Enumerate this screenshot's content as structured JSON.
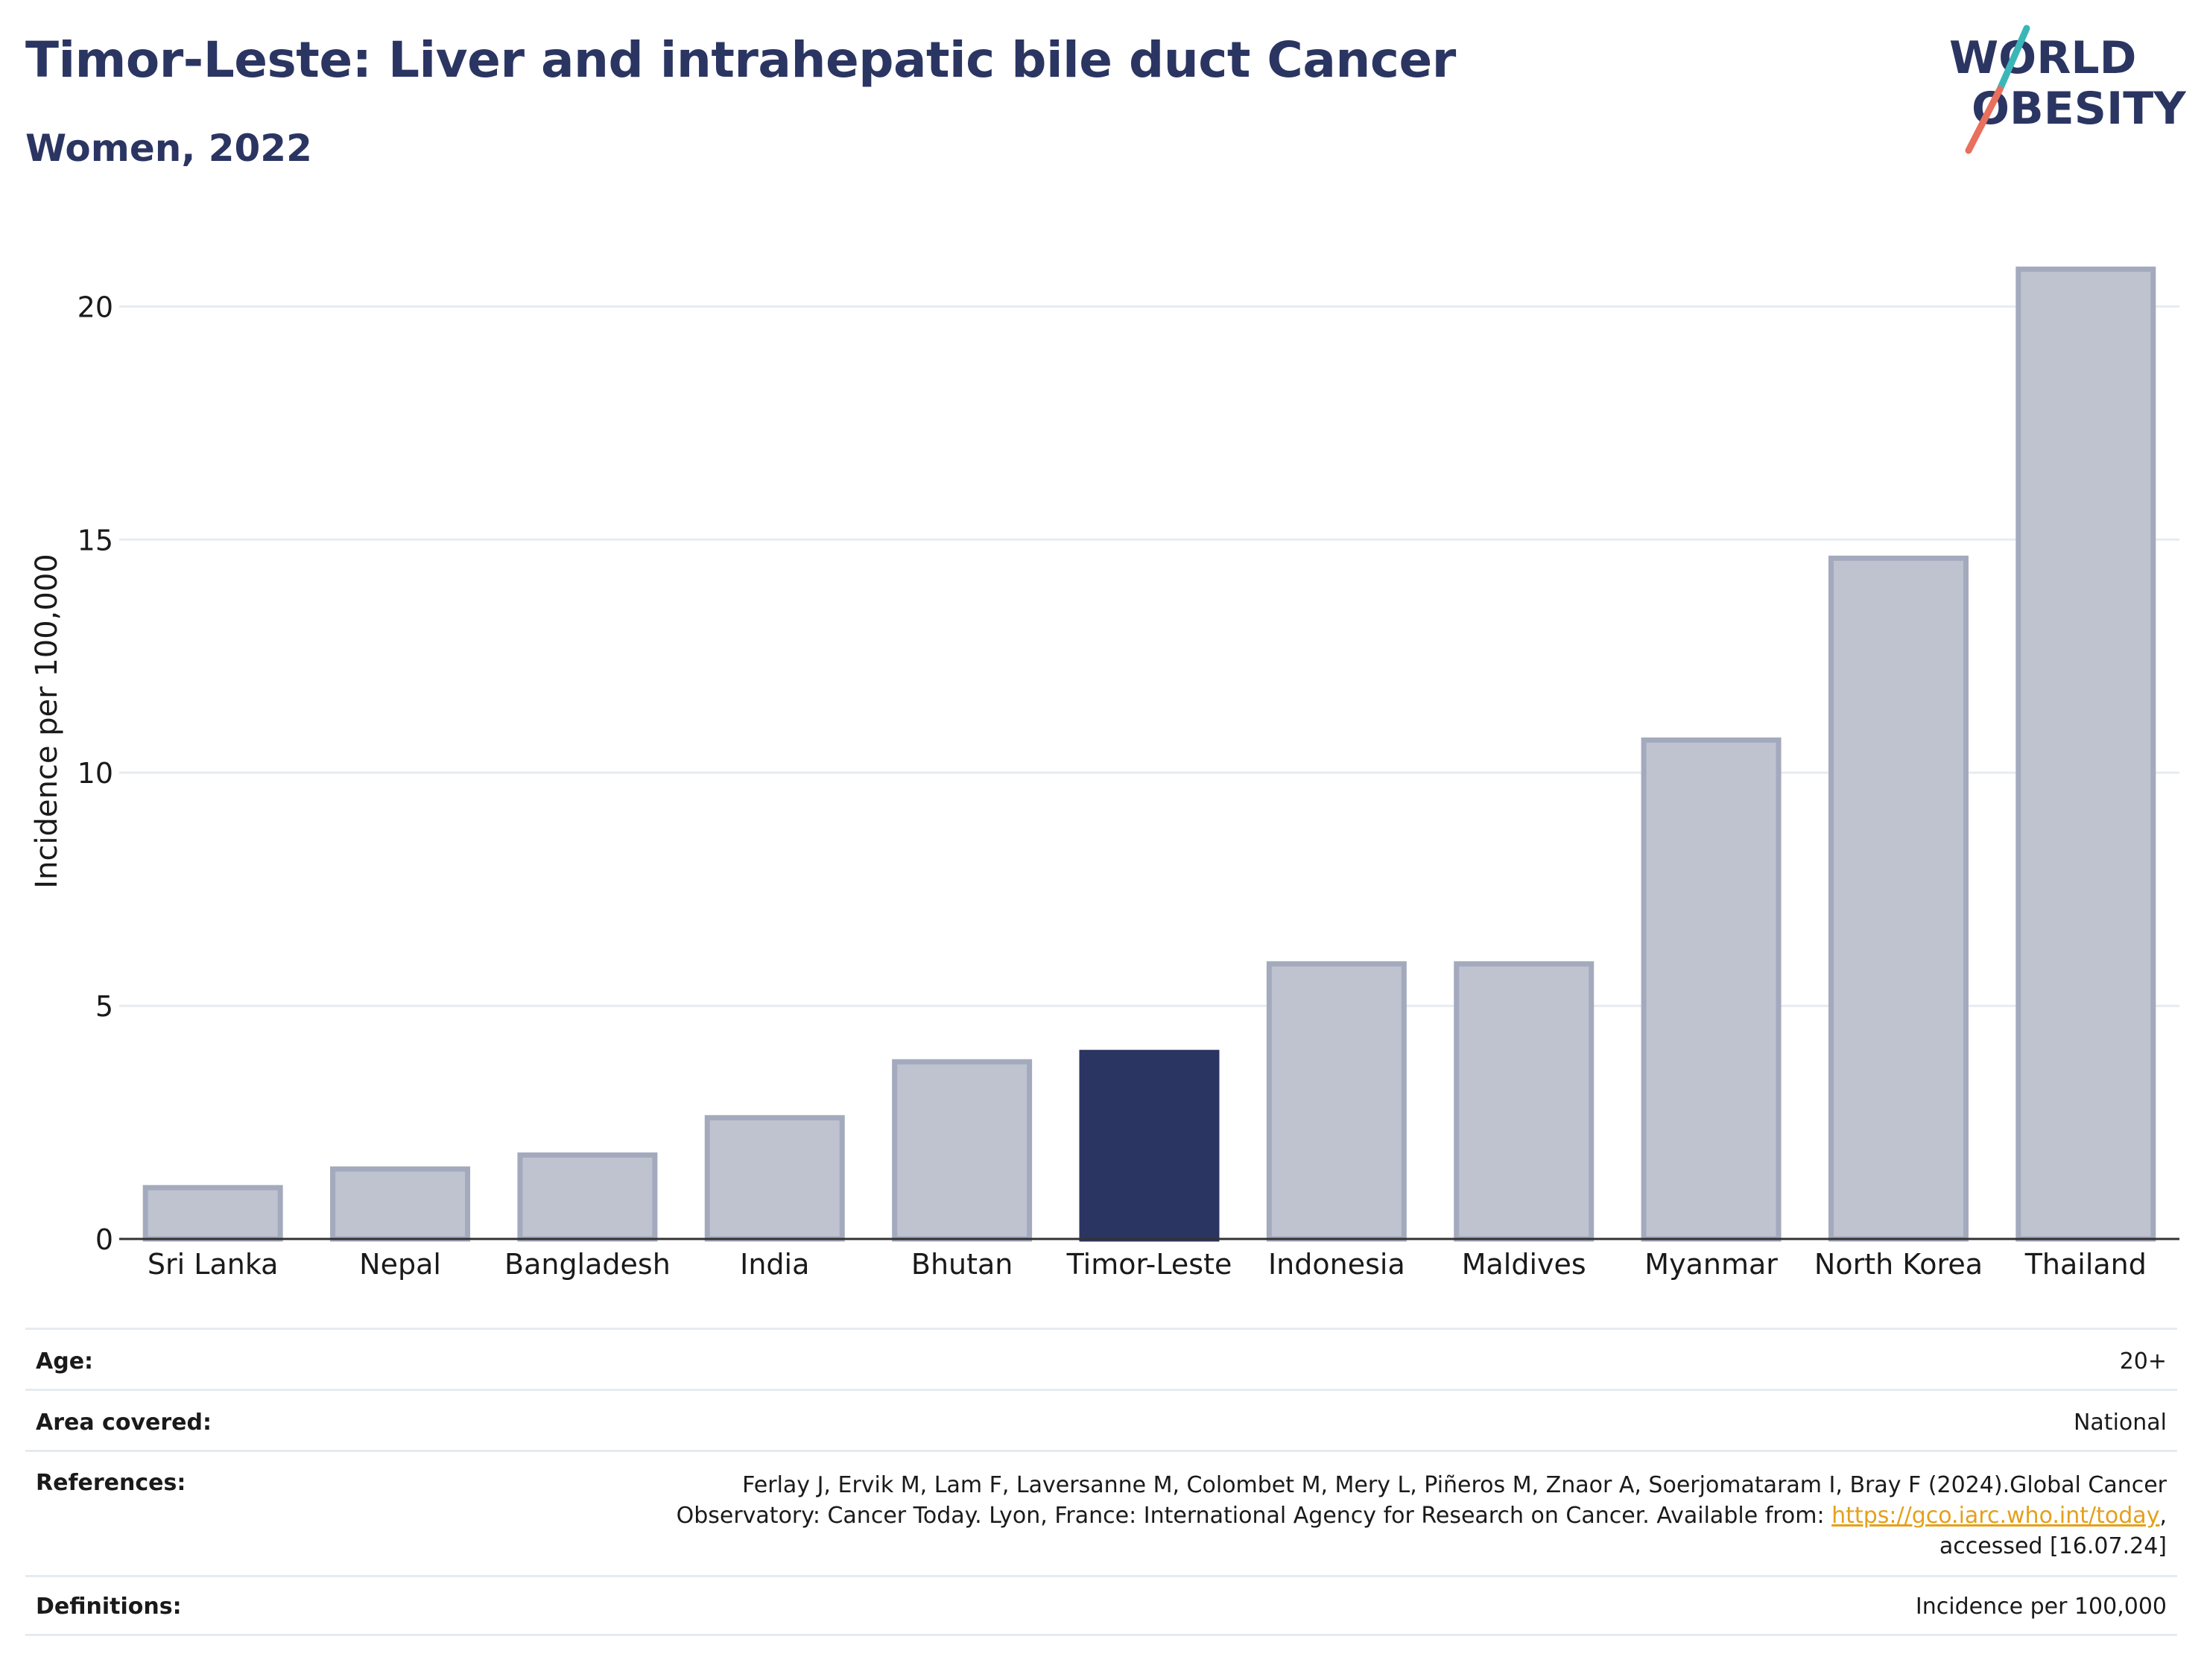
{
  "header": {
    "title": "Timor-Leste: Liver and intrahepatic bile duct Cancer",
    "subtitle": "Women, 2022"
  },
  "logo": {
    "line1": "WORLD",
    "line2": "OBESITY",
    "colors": {
      "text": "#2b3562",
      "slash_top": "#3bb6b8",
      "slash_bottom": "#e8705d"
    }
  },
  "colors": {
    "highlight_bar": "#2b3562",
    "other_bar_fill": "#bfc3cf",
    "other_bar_stroke": "#a4aabd",
    "gridline": "#e6ebf1",
    "axis": "#333333",
    "link": "#e4a01b"
  },
  "chart_data": {
    "type": "bar",
    "title": "Timor-Leste: Liver and intrahepatic bile duct Cancer",
    "subtitle": "Women, 2022",
    "xlabel": "",
    "ylabel": "Incidence per 100,000",
    "categories": [
      "Sri Lanka",
      "Nepal",
      "Bangladesh",
      "India",
      "Bhutan",
      "Timor-Leste",
      "Indonesia",
      "Maldives",
      "Myanmar",
      "North Korea",
      "Thailand"
    ],
    "values": [
      1.1,
      1.5,
      1.8,
      2.6,
      3.8,
      4.0,
      5.9,
      5.9,
      10.7,
      14.6,
      20.8
    ],
    "highlight": "Timor-Leste",
    "ylim": [
      0,
      21.3
    ],
    "yticks": [
      0,
      5,
      10,
      15,
      20
    ],
    "grid": true,
    "legend": "none"
  },
  "meta": {
    "age_label": "Age:",
    "age_value": "20+",
    "area_label": "Area covered:",
    "area_value": "National",
    "references_label": "References:",
    "references_line1": "Ferlay J, Ervik M, Lam F, Laversanne M, Colombet M, Mery L, Piñeros M, Znaor A, Soerjomataram I, Bray F (2024).Global Cancer",
    "references_line2_pre": "Observatory: Cancer Today. Lyon, France: International Agency for Research on Cancer. Available from: ",
    "references_link": "https://gco.iarc.who.int/today",
    "references_line2_post": ",",
    "references_line3": "accessed [16.07.24]",
    "definitions_label": "Definitions:",
    "definitions_value": "Incidence per 100,000"
  }
}
